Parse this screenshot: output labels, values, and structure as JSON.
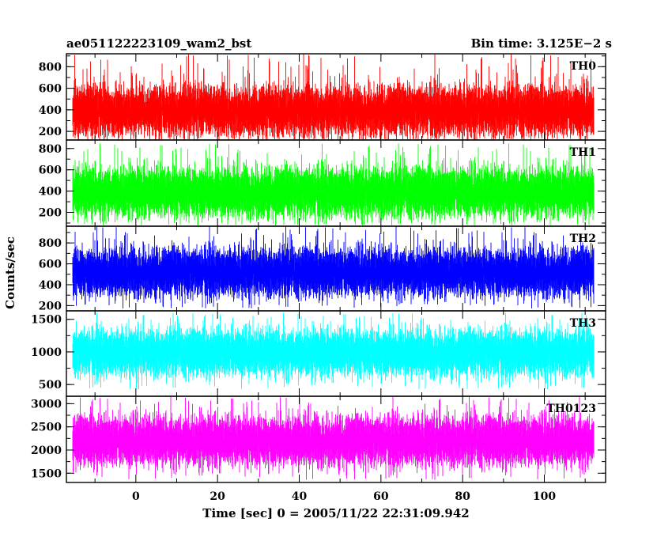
{
  "chart_data": {
    "type": "line",
    "title_left": "ae051122223109_wam2_bst",
    "title_right": "Bin time: 3.125E−2 s",
    "ylabel": "Counts/sec",
    "xlabel": "Time [sec] 0 = 2005/11/22 22:31:09.942",
    "xlim": [
      -17,
      115
    ],
    "x_data_range": [
      -15.5,
      112.0
    ],
    "bin_time": 0.03125,
    "x_ticks": [
      0,
      20,
      40,
      60,
      80,
      100
    ],
    "x_tick_labels": [
      "0",
      "20",
      "40",
      "60",
      "80",
      "100"
    ],
    "grid": false,
    "panels": [
      {
        "name": "TH0",
        "color": "#ff0000",
        "ylim": [
          120,
          920
        ],
        "y_ticks": [
          200,
          400,
          600,
          800
        ],
        "y_tick_labels": [
          "200",
          "400",
          "600",
          "800"
        ],
        "mean": 390,
        "typical_min": 170,
        "typical_max": 700,
        "extreme_min": 120,
        "extreme_max": 920
      },
      {
        "name": "TH1",
        "color": "#00ff00",
        "ylim": [
          70,
          880
        ],
        "y_ticks": [
          200,
          400,
          600,
          800
        ],
        "y_tick_labels": [
          "200",
          "400",
          "600",
          "800"
        ],
        "mean": 390,
        "typical_min": 150,
        "typical_max": 680,
        "extreme_min": 80,
        "extreme_max": 850
      },
      {
        "name": "TH2",
        "color": "#0000ff",
        "ylim": [
          150,
          960
        ],
        "y_ticks": [
          200,
          400,
          600,
          800
        ],
        "y_tick_labels": [
          "200",
          "400",
          "600",
          "800"
        ],
        "mean": 520,
        "typical_min": 280,
        "typical_max": 800,
        "extreme_min": 170,
        "extreme_max": 960
      },
      {
        "name": "TH3",
        "color": "#00ffff",
        "ylim": [
          320,
          1630
        ],
        "y_ticks": [
          500,
          1000,
          1500
        ],
        "y_tick_labels": [
          "500",
          "1000",
          "1500"
        ],
        "mean": 990,
        "typical_min": 600,
        "typical_max": 1400,
        "extreme_min": 420,
        "extreme_max": 1600
      },
      {
        "name": "TH0123",
        "color": "#ff00ff",
        "ylim": [
          1300,
          3160
        ],
        "y_ticks": [
          1500,
          2000,
          2500,
          3000
        ],
        "y_tick_labels": [
          "1500",
          "2000",
          "2500",
          "3000"
        ],
        "mean": 2200,
        "typical_min": 1600,
        "typical_max": 2800,
        "extreme_min": 1350,
        "extreme_max": 3150
      }
    ]
  }
}
